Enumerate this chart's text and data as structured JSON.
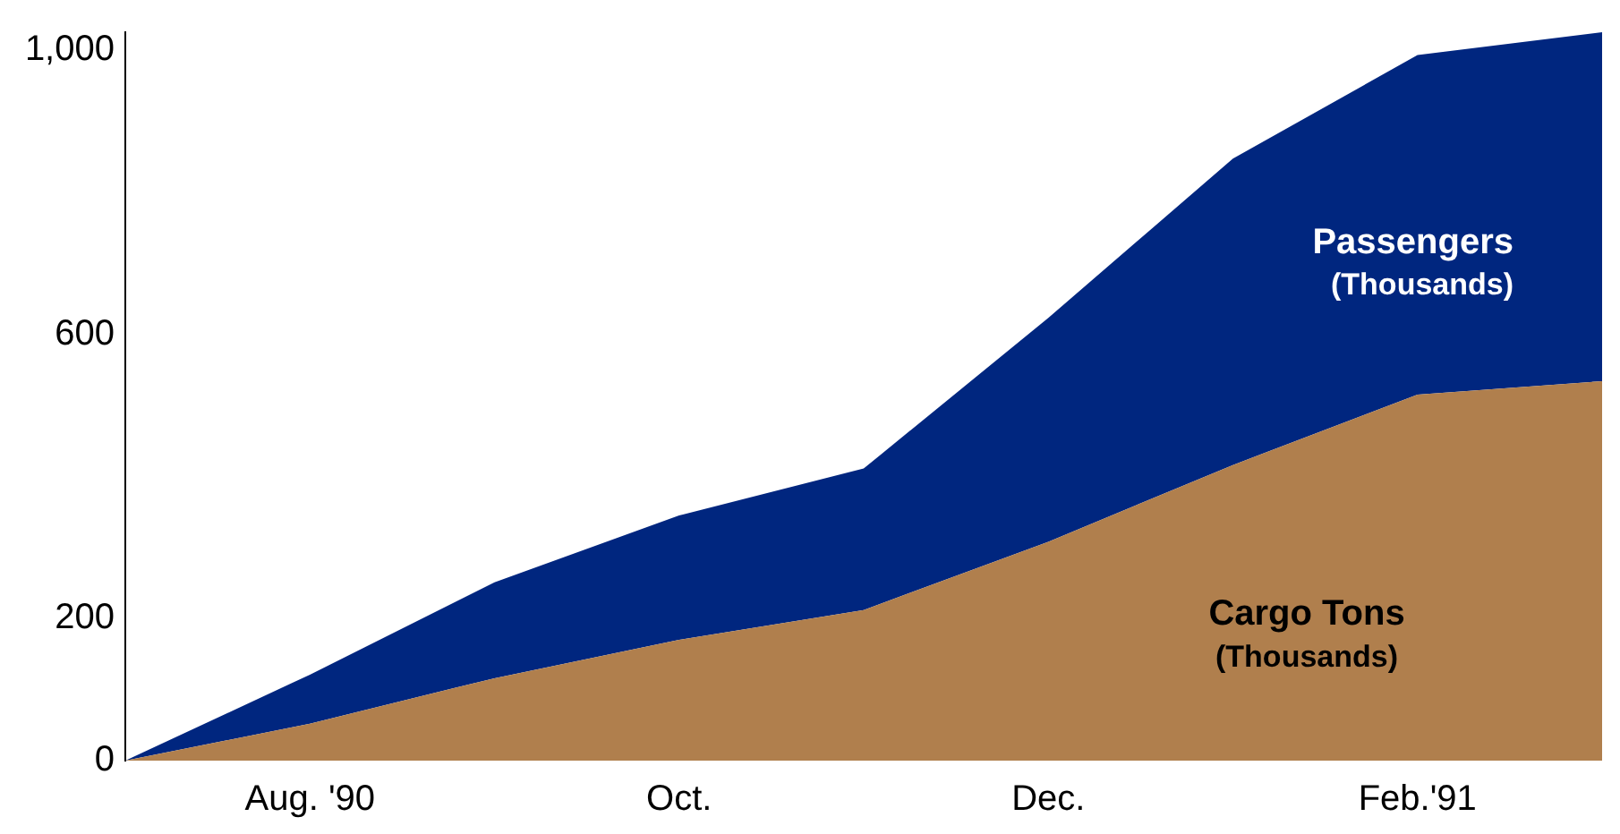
{
  "chart_data": {
    "type": "area",
    "stacked": true,
    "categories": [
      null,
      "Aug. '90",
      null,
      "Oct.",
      null,
      "Dec.",
      null,
      "Feb.'91",
      null
    ],
    "series": [
      {
        "name": "Cargo Tons (Thousands)",
        "color": "#b07f4d",
        "values": [
          0,
          52,
          116,
          170,
          212,
          308,
          416,
          515,
          534
        ]
      },
      {
        "name": "Passengers (Thousands)",
        "color": "#00267f",
        "values": [
          0,
          69,
          135,
          175,
          199,
          315,
          431,
          478,
          491
        ]
      }
    ],
    "ylim": [
      0,
      1025
    ],
    "yticks": [
      0,
      200,
      600,
      {
        "value": 1000,
        "label": "1,000"
      }
    ],
    "grid": false,
    "legend": false
  }
}
